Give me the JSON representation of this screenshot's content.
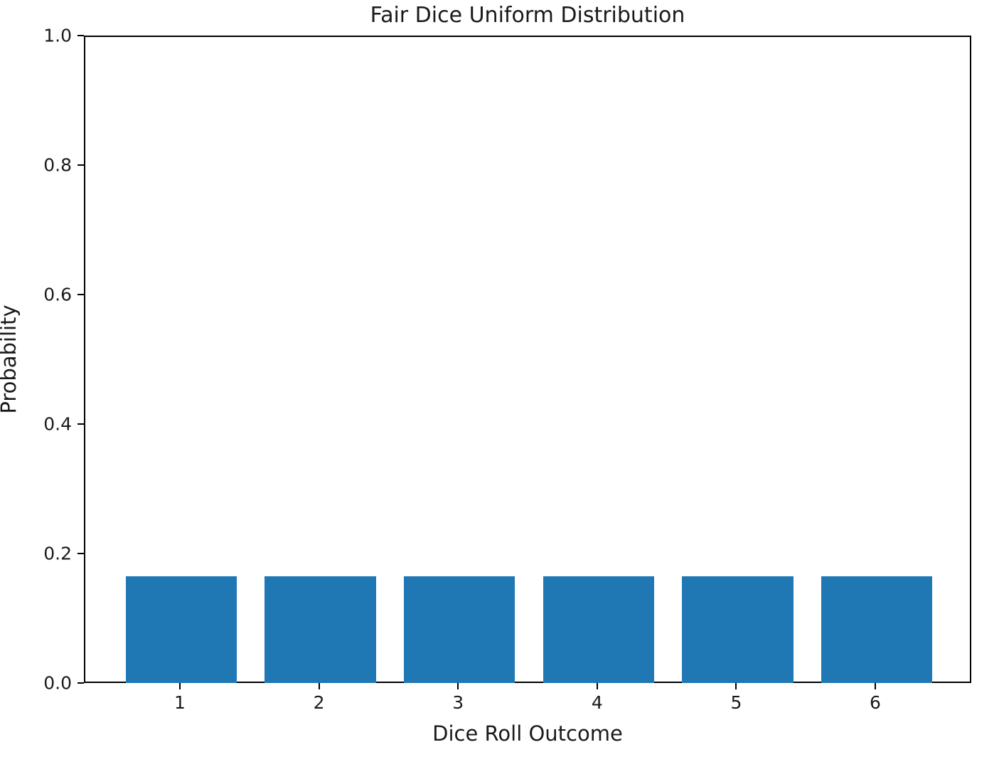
{
  "chart_data": {
    "type": "bar",
    "title": "Fair Dice Uniform Distribution",
    "xlabel": "Dice Roll Outcome",
    "ylabel": "Probability",
    "categories": [
      1,
      2,
      3,
      4,
      5,
      6
    ],
    "values": [
      0.1667,
      0.1667,
      0.1667,
      0.1667,
      0.1667,
      0.1667
    ],
    "xtick_labels": [
      "1",
      "2",
      "3",
      "4",
      "5",
      "6"
    ],
    "ytick_labels": [
      "0.0",
      "0.2",
      "0.4",
      "0.6",
      "0.8",
      "1.0"
    ],
    "ytick_values": [
      0.0,
      0.2,
      0.4,
      0.6,
      0.8,
      1.0
    ],
    "xlim": [
      0.31,
      6.69
    ],
    "ylim": [
      0.0,
      1.0
    ],
    "bar_width": 0.8,
    "bar_color": "#1f77b4",
    "axis_color": "#000000",
    "text_color": "#1a1a1a",
    "background_color": "#ffffff",
    "grid": false,
    "legend": null
  }
}
